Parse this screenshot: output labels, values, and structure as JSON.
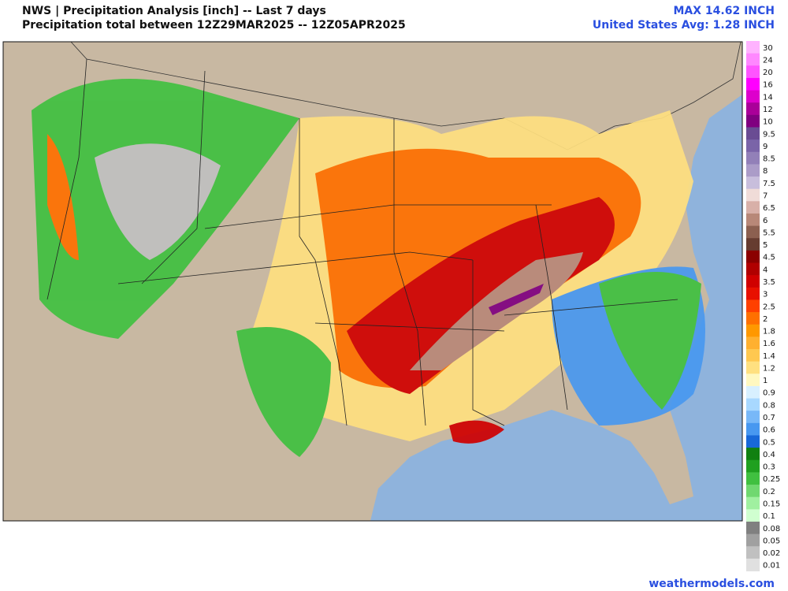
{
  "header": {
    "title": "NWS | Precipitation Analysis [inch] -- Last 7 days",
    "subtitle": "Precipitation total between 12Z29MAR2025 -- 12Z05APR2025",
    "max": "MAX 14.62 INCH",
    "average": "United States Avg: 1.28 INCH"
  },
  "legend": {
    "levels": [
      {
        "label": "30",
        "color": "#ffb3ff"
      },
      {
        "label": "24",
        "color": "#ff88ff"
      },
      {
        "label": "20",
        "color": "#ff55ff"
      },
      {
        "label": "16",
        "color": "#ff00ff"
      },
      {
        "label": "14",
        "color": "#dd00cc"
      },
      {
        "label": "12",
        "color": "#aa0099"
      },
      {
        "label": "10",
        "color": "#800080"
      },
      {
        "label": "9.5",
        "color": "#6a4c93"
      },
      {
        "label": "9",
        "color": "#7a64a8"
      },
      {
        "label": "8.5",
        "color": "#9280b8"
      },
      {
        "label": "8",
        "color": "#ab9cc8"
      },
      {
        "label": "7.5",
        "color": "#c8bedc"
      },
      {
        "label": "7",
        "color": "#f0dcd8"
      },
      {
        "label": "6.5",
        "color": "#d8b0a8"
      },
      {
        "label": "6",
        "color": "#b88878"
      },
      {
        "label": "5.5",
        "color": "#8c6050"
      },
      {
        "label": "5",
        "color": "#663c30"
      },
      {
        "label": "4.5",
        "color": "#8b0000"
      },
      {
        "label": "4",
        "color": "#b00000"
      },
      {
        "label": "3.5",
        "color": "#d00000"
      },
      {
        "label": "3",
        "color": "#e81000"
      },
      {
        "label": "2.5",
        "color": "#ff4000"
      },
      {
        "label": "2",
        "color": "#ff7000"
      },
      {
        "label": "1.8",
        "color": "#ff9800"
      },
      {
        "label": "1.6",
        "color": "#ffb030"
      },
      {
        "label": "1.4",
        "color": "#ffc850"
      },
      {
        "label": "1.2",
        "color": "#ffe080"
      },
      {
        "label": "1",
        "color": "#fff8c0"
      },
      {
        "label": "0.9",
        "color": "#d8f0ff"
      },
      {
        "label": "0.8",
        "color": "#a8d8ff"
      },
      {
        "label": "0.7",
        "color": "#78b8f8"
      },
      {
        "label": "0.6",
        "color": "#4898f0"
      },
      {
        "label": "0.5",
        "color": "#1868d8"
      },
      {
        "label": "0.4",
        "color": "#108010"
      },
      {
        "label": "0.3",
        "color": "#20a020"
      },
      {
        "label": "0.25",
        "color": "#40c040"
      },
      {
        "label": "0.2",
        "color": "#70d870"
      },
      {
        "label": "0.15",
        "color": "#a0f0a0"
      },
      {
        "label": "0.1",
        "color": "#d0ffd0"
      },
      {
        "label": "0.08",
        "color": "#808080"
      },
      {
        "label": "0.05",
        "color": "#a0a0a0"
      },
      {
        "label": "0.02",
        "color": "#c0c0c0"
      },
      {
        "label": "0.01",
        "color": "#e0e0e0"
      }
    ]
  },
  "footer": {
    "source": "weathermodels.com"
  }
}
